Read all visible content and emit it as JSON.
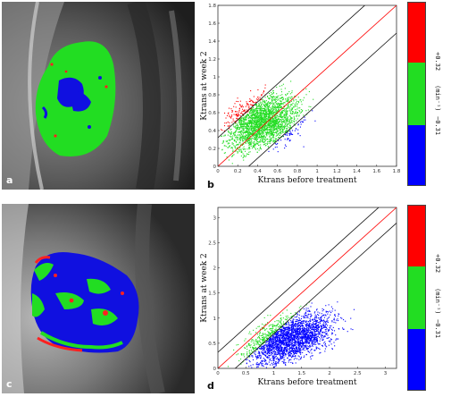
{
  "panels": {
    "a": {
      "letter": "a"
    },
    "b": {
      "letter": "b"
    },
    "c": {
      "letter": "c"
    },
    "d": {
      "letter": "d"
    }
  },
  "colorbars": [
    {
      "upper_label": "+0.32",
      "unit_label": "(min⁻¹)",
      "lower_label": "−0.31",
      "colors": {
        "red": "#ff0000",
        "green": "#22dd22",
        "blue": "#0000ff"
      }
    },
    {
      "upper_label": "+0.32",
      "unit_label": "(min⁻¹)",
      "lower_label": "−0.31",
      "colors": {
        "red": "#ff0000",
        "green": "#22dd22",
        "blue": "#0000ff"
      }
    }
  ],
  "chart_data": [
    {
      "type": "scatter",
      "panel": "b",
      "xlabel": "Ktrans before treatment",
      "ylabel": "Ktrans at week 2",
      "xlim": [
        0,
        1.8
      ],
      "ylim": [
        0,
        1.8
      ],
      "xticks": [
        "0",
        "0.2",
        "0.4",
        "0.6",
        "0.8",
        "1",
        "1.2",
        "1.4",
        "1.6",
        "1.8"
      ],
      "yticks": [
        "0",
        "0.2",
        "0.4",
        "0.6",
        "0.8",
        "1",
        "1.2",
        "1.4",
        "1.6",
        "1.8"
      ],
      "lines": [
        {
          "name": "identity",
          "color": "#ff0000",
          "offset": 0
        },
        {
          "name": "upper-threshold",
          "color": "#111111",
          "offset": 0.32
        },
        {
          "name": "lower-threshold",
          "color": "#111111",
          "offset": -0.31
        }
      ],
      "clusters": {
        "x_center": 0.45,
        "y_center": 0.5,
        "x_spread": 0.38,
        "y_spread": 0.3,
        "x_max": 1.6,
        "y_max": 1.35
      }
    },
    {
      "type": "scatter",
      "panel": "d",
      "xlabel": "Ktrans before treatment",
      "ylabel": "Ktrans at week 2",
      "xlim": [
        0,
        3.2
      ],
      "ylim": [
        0,
        3.2
      ],
      "xticks": [
        "0",
        "0.5",
        "1",
        "1.5",
        "2",
        "2.5",
        "3"
      ],
      "yticks": [
        "0",
        "0.5",
        "1",
        "1.5",
        "2",
        "2.5",
        "3"
      ],
      "lines": [
        {
          "name": "identity",
          "color": "#ff0000",
          "offset": 0
        },
        {
          "name": "upper-threshold",
          "color": "#111111",
          "offset": 0.32
        },
        {
          "name": "lower-threshold",
          "color": "#111111",
          "offset": -0.31
        }
      ],
      "clusters": {
        "x_center": 1.3,
        "y_center": 0.6,
        "x_spread": 0.8,
        "y_spread": 0.45,
        "x_max": 2.7,
        "y_max": 1.65
      }
    }
  ]
}
